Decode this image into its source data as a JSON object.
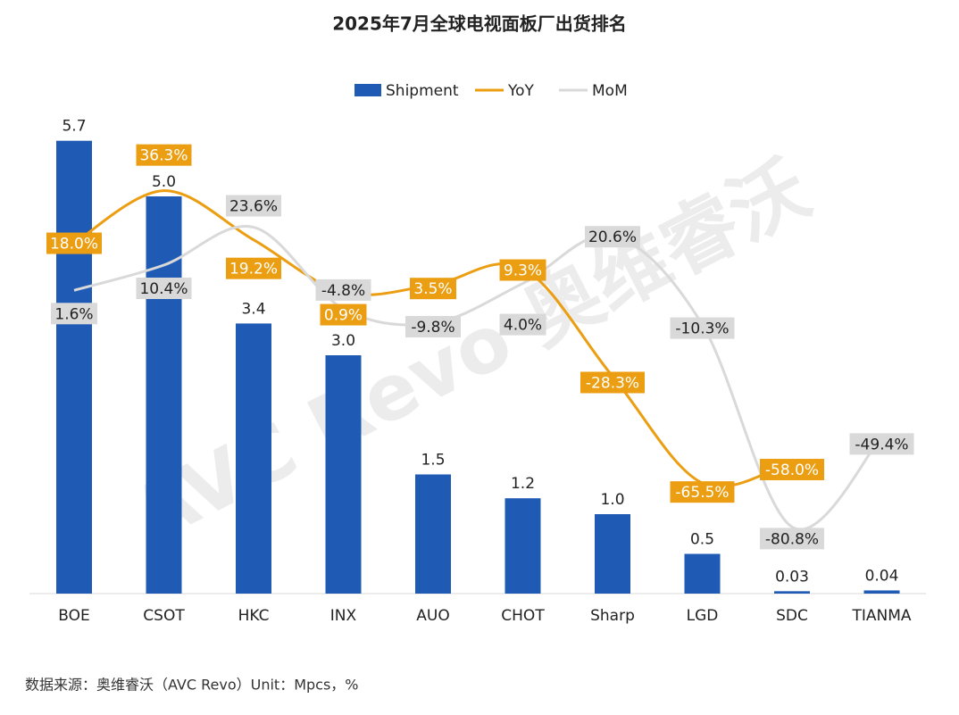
{
  "chart_data": {
    "type": "bar",
    "title": "2025年7月全球电视面板厂出货排名",
    "categories": [
      "BOE",
      "CSOT",
      "HKC",
      "INX",
      "AUO",
      "CHOT",
      "Sharp",
      "LGD",
      "SDC",
      "TIANMA"
    ],
    "ylim": [
      0,
      6
    ],
    "y2lim": [
      -104,
      62
    ],
    "series": [
      {
        "name": "Shipment",
        "type": "bar",
        "color": "#1f5bb5",
        "values": [
          5.7,
          5.0,
          3.4,
          3.0,
          1.5,
          1.2,
          1.0,
          0.5,
          0.03,
          0.04
        ],
        "value_labels": [
          "5.7",
          "5.0",
          "3.4",
          "3.0",
          "1.5",
          "1.2",
          "1.0",
          "0.5",
          "0.03",
          "0.04"
        ]
      },
      {
        "name": "YoY",
        "type": "line",
        "axis": "y2",
        "color": "#eb9e12",
        "values": [
          18.0,
          36.3,
          19.2,
          0.9,
          3.5,
          9.3,
          -28.3,
          -65.5,
          -58.0,
          null
        ],
        "value_labels": [
          "18.0%",
          "36.3%",
          "19.2%",
          "0.9%",
          "3.5%",
          "9.3%",
          "-28.3%",
          "-65.5%",
          "-58.0%",
          null
        ]
      },
      {
        "name": "MoM",
        "type": "line",
        "axis": "y2",
        "color": "#d9d9d9",
        "values": [
          1.6,
          10.4,
          23.6,
          -4.8,
          -9.8,
          4.0,
          20.6,
          -10.3,
          -80.8,
          -49.4
        ],
        "value_labels": [
          "1.6%",
          "10.4%",
          "23.6%",
          "-4.8%",
          "-9.8%",
          "4.0%",
          "20.6%",
          "-10.3%",
          "-80.8%",
          "-49.4%"
        ]
      }
    ],
    "legend": "top",
    "watermark": "AVC Revo 奥维睿沃",
    "source": "数据来源：奥维睿沃（AVC Revo）Unit：Mpcs，%"
  }
}
